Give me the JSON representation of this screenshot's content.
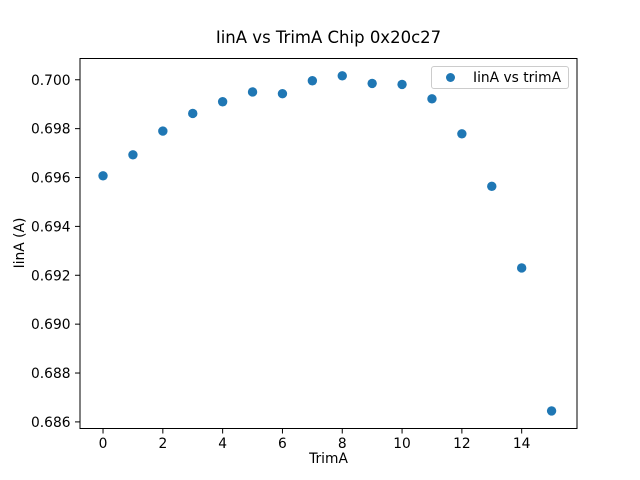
{
  "figure": {
    "background": "#ffffff"
  },
  "chart_data": {
    "type": "scatter",
    "title": "IinA vs TrimA Chip 0x20c27",
    "xlabel": "TrimA",
    "ylabel": "IinA (A)",
    "legend": {
      "label": "IinA vs trimA",
      "position": "upper right"
    },
    "series": [
      {
        "name": "IinA vs trimA",
        "color": "#1f77b4",
        "x": [
          0,
          1,
          2,
          3,
          4,
          5,
          6,
          7,
          8,
          9,
          10,
          11,
          12,
          13,
          14,
          15
        ],
        "y": [
          0.69607,
          0.69693,
          0.6979,
          0.69862,
          0.6991,
          0.6995,
          0.69943,
          0.69996,
          0.70016,
          0.69985,
          0.69981,
          0.69922,
          0.69779,
          0.69564,
          0.6923,
          0.68645
        ]
      }
    ],
    "xticks": [
      0,
      2,
      4,
      6,
      8,
      10,
      12,
      14
    ],
    "yticks": [
      0.686,
      0.688,
      0.69,
      0.692,
      0.694,
      0.696,
      0.698,
      0.7
    ],
    "ytick_decimals": 3,
    "xlim": [
      -0.77,
      15.85
    ],
    "ylim": [
      0.68573,
      0.70087
    ],
    "grid": false,
    "marker_radius": 4.7,
    "colors": {
      "spine": "#000000",
      "tick": "#000000",
      "text": "#000000",
      "legend_border": "#cccccc"
    }
  }
}
